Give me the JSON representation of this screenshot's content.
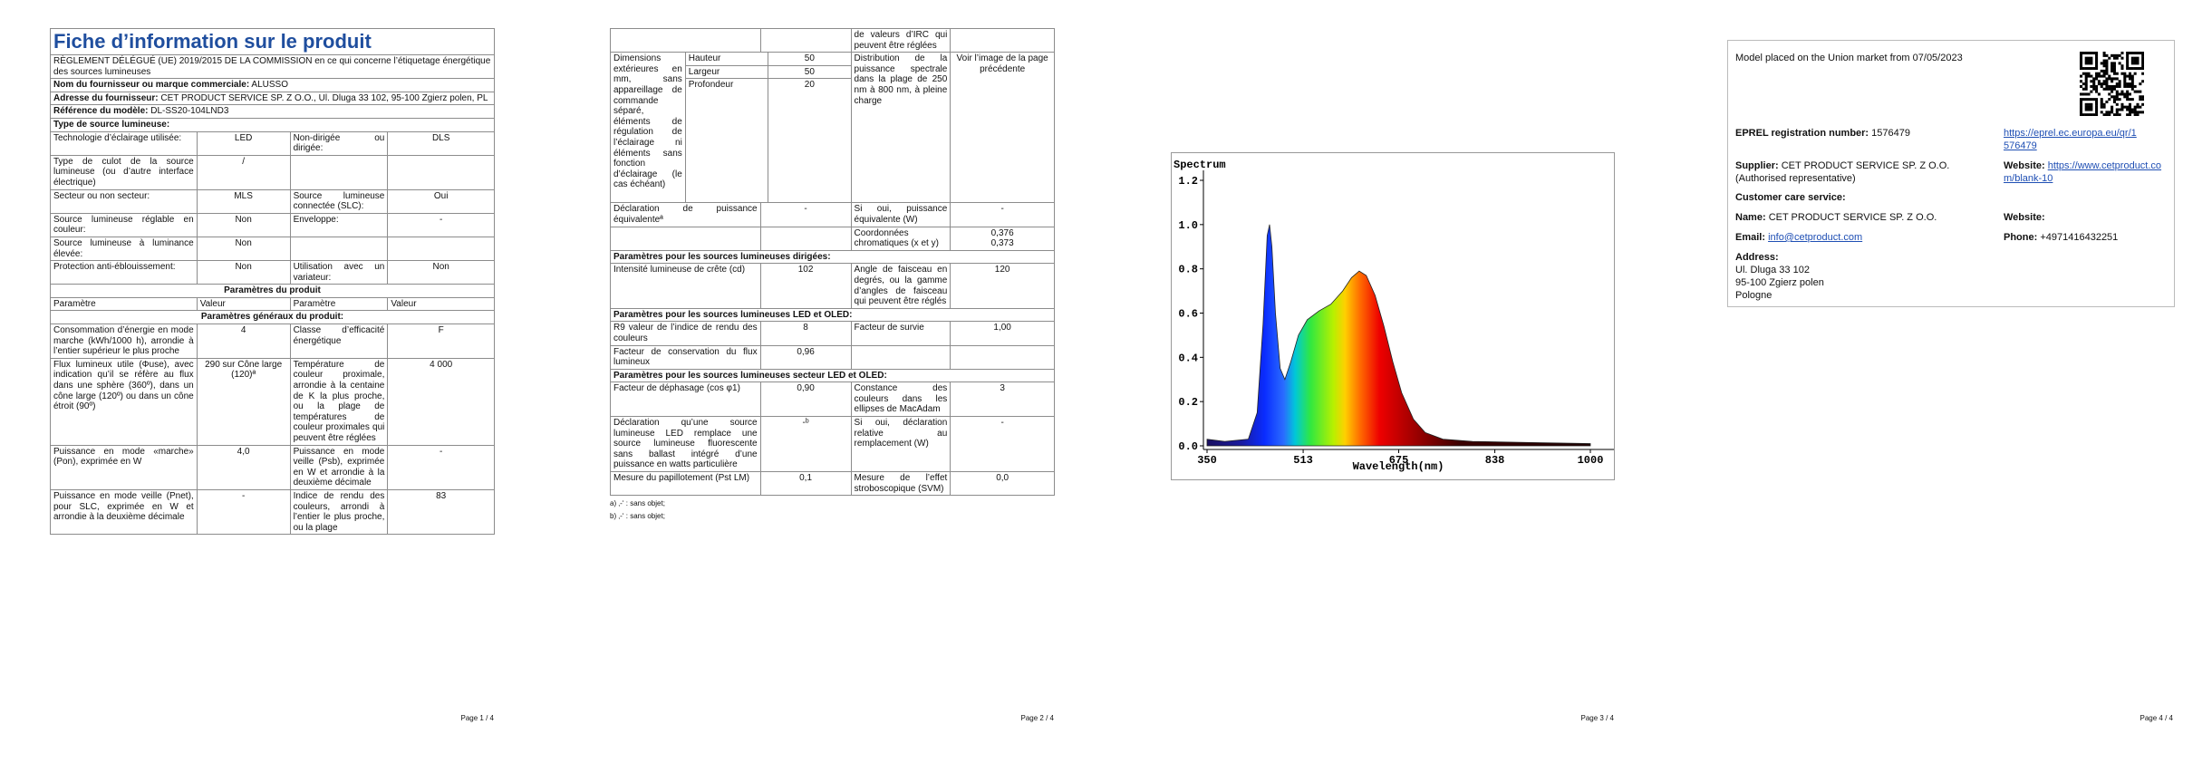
{
  "page1": {
    "title": "Fiche d’information sur le produit",
    "regulation": "RÈGLEMENT DÉLÉGUÉ (UE) 2019/2015 DE LA COMMISSION en ce qui concerne l’étiquetage énergétique des sources lumineuses",
    "info": [
      [
        "Nom du fournisseur ou marque commerciale:",
        "ALUSSO"
      ],
      [
        "Adresse du fournisseur:",
        "CET PRODUCT SERVICE SP. Z O.O., Ul. Dluga 33 102, 95-100 Zgierz polen, PL"
      ],
      [
        "Référence du modèle:",
        "DL-SS20-104LND3"
      ]
    ],
    "type_heading": "Type de source lumineuse:",
    "types": [
      [
        "Technologie d’éclairage utilisée:",
        "LED",
        "Non-dirigée ou dirigée:",
        "DLS"
      ],
      [
        "Type de culot de la source lumineuse (ou d’autre interface électrique)",
        "/"
      ],
      [
        "Secteur ou non secteur:",
        "MLS",
        "Source lumineuse connectée (SLC):",
        "Oui"
      ],
      [
        "Source lumineuse réglable en couleur:",
        "Non",
        "Enveloppe:",
        "-"
      ],
      [
        "Source lumineuse à luminance élevée:",
        "Non"
      ],
      [
        "Protection anti-éblouissement:",
        "Non",
        "Utilisation avec un variateur:",
        "Non"
      ]
    ],
    "params_heading": "Paramètres du produit",
    "columns": [
      "Paramètre",
      "Valeur",
      "Paramètre",
      "Valeur"
    ],
    "general_heading": "Paramètres généraux du produit:",
    "general": [
      [
        "Consommation d’énergie en mode marche (kWh/1000 h), arrondie à l’entier supérieur le plus proche",
        "4",
        "Classe d’efficacité énergétique",
        "F"
      ],
      [
        "Flux lumineux utile (Φuse), avec indication qu’il se réfère au flux dans une sphère (360º), dans un cône large (120º) ou dans un cône étroit (90º)",
        "290 sur Cône large (120)ª",
        "Température de couleur proximale, arrondie à la centaine de K la plus proche, ou la plage de températures de couleur proximales qui peuvent être réglées",
        "4 000"
      ],
      [
        "Puissance en mode «marche» (Pon), exprimée en W",
        "4,0",
        "Puissance en mode veille (Psb), exprimée en W et arrondie à la deuxième décimale",
        "-"
      ],
      [
        "Puissance en mode veille (Pnet), pour SLC, exprimée en W et arrondie à la deuxième décimale",
        "-",
        "Indice de rendu des couleurs, arrondi à l’entier le plus proche, ou la plage",
        "83"
      ]
    ],
    "footer": "Page 1 / 4"
  },
  "page2": {
    "continuation": "de valeurs d’IRC qui peuvent être réglées",
    "dimensions": {
      "label": "Dimensions extérieures en mm, sans appareillage de commande séparé, éléments de régulation de l’éclairage ni éléments sans fonction d’éclairage (le cas échéant)",
      "rows": [
        [
          "Hauteur",
          "50"
        ],
        [
          "Largeur",
          "50"
        ],
        [
          "Profondeur",
          "20"
        ]
      ],
      "spectral": "Distribution de la puissance spectrale dans la plage de 250 nm à 800 nm, à pleine charge",
      "spectral_value": "Voir l’image de la page précédente"
    },
    "equivalent": [
      "Déclaration de puissance équivalenteª",
      "-",
      "Si oui, puissance équivalente (W)",
      "-"
    ],
    "chroma": {
      "label": "Coordonnées chromatiques (x et y)",
      "values": [
        "0,376",
        "0,373"
      ]
    },
    "sections": [
      {
        "heading": "Paramètres pour les sources lumineuses dirigées:",
        "rows": [
          [
            "Intensité lumineuse de crête (cd)",
            "102",
            "Angle de faisceau en degrés, ou la gamme d’angles de faisceau qui peuvent être réglés",
            "120"
          ]
        ]
      },
      {
        "heading": "Paramètres pour les sources lumineuses LED et OLED:",
        "rows": [
          [
            "R9 valeur de l’indice de rendu des couleurs",
            "8",
            "Facteur de survie",
            "1,00"
          ],
          [
            "Facteur de conservation du flux lumineux",
            "0,96"
          ]
        ]
      },
      {
        "heading": "Paramètres pour les sources lumineuses secteur LED et OLED:",
        "rows": [
          [
            "Facteur de déphasage (cos φ1)",
            "0,90",
            "Constance des couleurs dans les ellipses de MacAdam",
            "3"
          ],
          [
            "Déclaration qu’une source lumineuse LED remplace une source lumineuse fluorescente sans ballast intégré d’une puissance en watts particulière",
            "-ᵇ",
            "Si oui, déclaration relative au remplacement (W)",
            "-"
          ],
          [
            "Mesure du papillotement (Pst LM)",
            "0,1",
            "Mesure de l’effet stroboscopique (SVM)",
            "0,0"
          ]
        ]
      }
    ],
    "footnotes": [
      "a) ‚-‘ : sans objet;",
      "b) ‚-‘ : sans objet;"
    ],
    "footer": "Page 2 / 4"
  },
  "chart_data": {
    "type": "area",
    "title": "Spectrum",
    "x_label": "Wavelength(nm)",
    "x": [
      350,
      380,
      420,
      435,
      445,
      452,
      456,
      460,
      466,
      474,
      482,
      492,
      505,
      520,
      540,
      560,
      580,
      595,
      608,
      620,
      635,
      650,
      665,
      680,
      700,
      720,
      750,
      800,
      900,
      1000
    ],
    "values": [
      0.03,
      0.02,
      0.03,
      0.15,
      0.55,
      0.95,
      1.0,
      0.9,
      0.6,
      0.35,
      0.3,
      0.38,
      0.5,
      0.57,
      0.61,
      0.64,
      0.7,
      0.76,
      0.79,
      0.77,
      0.68,
      0.54,
      0.38,
      0.24,
      0.12,
      0.06,
      0.03,
      0.02,
      0.015,
      0.01
    ],
    "xlim": [
      350,
      1000
    ],
    "ylim": [
      0,
      1.2
    ],
    "xticks": [
      350,
      513,
      675,
      838,
      1000
    ],
    "yticks": [
      {
        "value": 0,
        "label": "0.0"
      },
      0.2,
      0.4,
      0.6,
      0.8,
      {
        "value": 1,
        "label": "1.0"
      },
      1.2
    ]
  },
  "page3": {
    "footer": "Page 3 / 4"
  },
  "page4": {
    "placed": "Model placed on the Union market from 07/05/2023",
    "eprel_label": "EPREL registration number:",
    "eprel_number": "1576479",
    "eprel_link": "https://eprel.ec.europa.eu/qr/1576479",
    "supplier_label": "Supplier:",
    "supplier": "CET PRODUCT SERVICE SP. Z O.O. (Authorised representative)",
    "website_label": "Website:",
    "website": "https://www.cetproduct.com/blank-10",
    "care_heading": "Customer care service:",
    "name_label": "Name:",
    "name": "CET PRODUCT SERVICE SP. Z O.O.",
    "care_website_label": "Website:",
    "email_label": "Email:",
    "email": "info@cetproduct.com",
    "phone_label": "Phone:",
    "phone": "+4971416432251",
    "address_label": "Address:",
    "address": [
      "Ul. Dluga 33 102",
      "95-100 Zgierz polen",
      "Pologne"
    ],
    "footer": "Page 4 / 4"
  }
}
